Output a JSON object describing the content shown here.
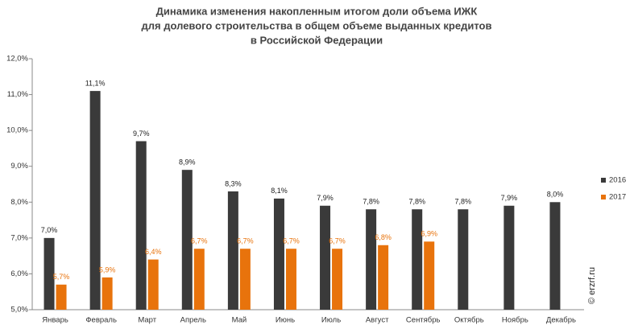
{
  "chart_data": {
    "type": "bar",
    "title": [
      "Динамика изменения накопленным итогом доли объема ИЖК",
      "для долевого строительства  в общем объеме выданных кредитов",
      "в Российской  Федерации"
    ],
    "categories": [
      "Январь",
      "Февраль",
      "Март",
      "Апрель",
      "Май",
      "Июнь",
      "Июль",
      "Август",
      "Сентябрь",
      "Октябрь",
      "Ноябрь",
      "Декабрь"
    ],
    "series": [
      {
        "name": "2016",
        "color": "#3a3a3a",
        "values": [
          7.0,
          11.1,
          9.7,
          8.9,
          8.3,
          8.1,
          7.9,
          7.8,
          7.8,
          7.8,
          7.9,
          8.0
        ],
        "value_labels": [
          "7,0%",
          "11,1%",
          "9,7%",
          "8,9%",
          "8,3%",
          "8,1%",
          "7,9%",
          "7,8%",
          "7,8%",
          "7,8%",
          "7,9%",
          "8,0%"
        ]
      },
      {
        "name": "2017",
        "color": "#e8730c",
        "values": [
          5.7,
          5.9,
          6.4,
          6.7,
          6.7,
          6.7,
          6.7,
          6.8,
          6.9,
          null,
          null,
          null
        ],
        "value_labels": [
          "5,7%",
          "5,9%",
          "6,4%",
          "6,7%",
          "6,7%",
          "6,7%",
          "6,7%",
          "6,8%",
          "6,9%",
          null,
          null,
          null
        ]
      }
    ],
    "ylim": [
      5,
      12
    ],
    "yticks": [
      {
        "value": 5,
        "label": "5,0%"
      },
      {
        "value": 6,
        "label": "6,0%"
      },
      {
        "value": 7,
        "label": "7,0%"
      },
      {
        "value": 8,
        "label": "8,0%"
      },
      {
        "value": 9,
        "label": "9,0%"
      },
      {
        "value": 10,
        "label": "10,0%"
      },
      {
        "value": 11,
        "label": "11,0%"
      },
      {
        "value": 12,
        "label": "12,0%"
      }
    ],
    "grid": false,
    "legend": "right",
    "watermark": "© erzrf.ru"
  }
}
